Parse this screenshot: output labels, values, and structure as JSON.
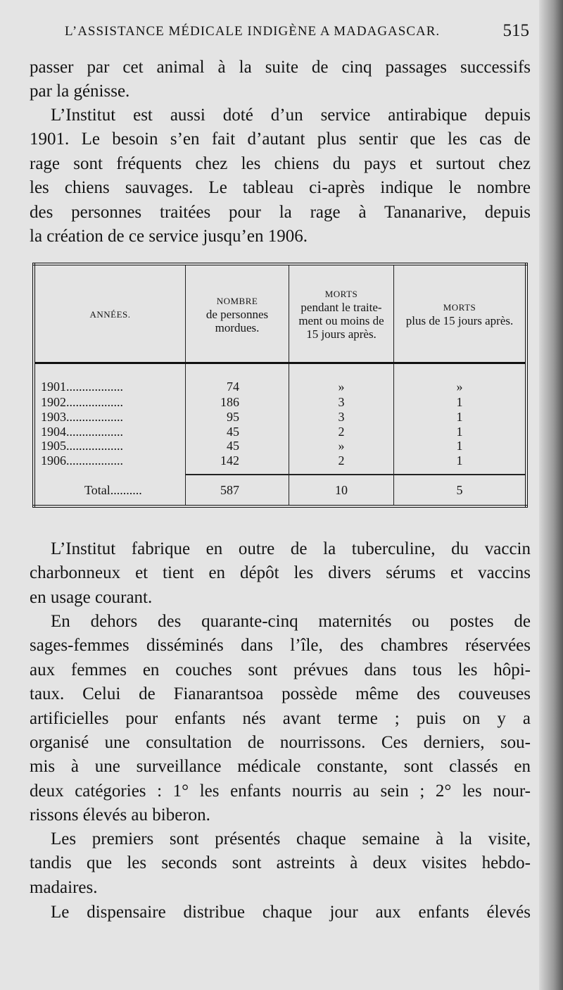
{
  "header": {
    "running_title": "L’ASSISTANCE MÉDICALE INDIGÈNE A MADAGASCAR.",
    "page_number": "515"
  },
  "para1": [
    "passer par cet animal à la suite de cinq passages successifs",
    "par la génisse."
  ],
  "para2": [
    "L’Institut est aussi doté d’un service antirabique depuis",
    "1901. Le besoin s’en fait d’autant plus sentir que les cas de",
    "rage sont fréquents chez les chiens du pays et surtout chez",
    "les chiens sauvages. Le tableau ci-après indique le nombre",
    "des personnes traitées pour la rage à Tananarive, depuis",
    "la création de ce service jusqu’en 1906."
  ],
  "table": {
    "headers": [
      {
        "title": "ANNÉES.",
        "sub": ""
      },
      {
        "title": "NOMBRE",
        "sub": "de personnes mordues."
      },
      {
        "title": "MORTS",
        "sub": "pendant le traite-ment ou moins de 15 jours après."
      },
      {
        "title": "MORTS",
        "sub": "plus de 15 jours après."
      }
    ],
    "rows": [
      [
        "1901",
        "74",
        "»",
        "»"
      ],
      [
        "1902",
        "186",
        "3",
        "1"
      ],
      [
        "1903",
        "95",
        "3",
        "1"
      ],
      [
        "1904",
        "45",
        "2",
        "1"
      ],
      [
        "1905",
        "45",
        "»",
        "1"
      ],
      [
        "1906",
        "142",
        "2",
        "1"
      ]
    ],
    "total": [
      "Total",
      "587",
      "10",
      "5"
    ]
  },
  "para3": [
    "L’Institut fabrique en outre de la tuberculine, du vaccin",
    "charbonneux et tient en dépôt les divers sérums et vaccins",
    "en usage courant."
  ],
  "para4": [
    "En dehors des quarante-cinq maternités ou postes de",
    "sages-femmes disséminés dans l’île, des chambres réservées",
    "aux femmes en couches sont prévues dans tous les hôpi-",
    "taux. Celui de Fianarantsoa possède même des couveuses",
    "artificielles pour enfants nés avant terme ; puis on y a",
    "organisé une consultation de nourrissons. Ces derniers, sou-",
    "mis à une surveillance médicale constante, sont classés en",
    "deux catégories : 1° les enfants nourris au sein ; 2° les nour-",
    "rissons élevés au biberon."
  ],
  "para5": [
    "Les premiers sont présentés chaque semaine à la visite,",
    "tandis que les seconds sont astreints à deux visites hebdo-",
    "madaires."
  ],
  "para6": [
    "Le dispensaire distribue chaque jour aux enfants élevés"
  ]
}
